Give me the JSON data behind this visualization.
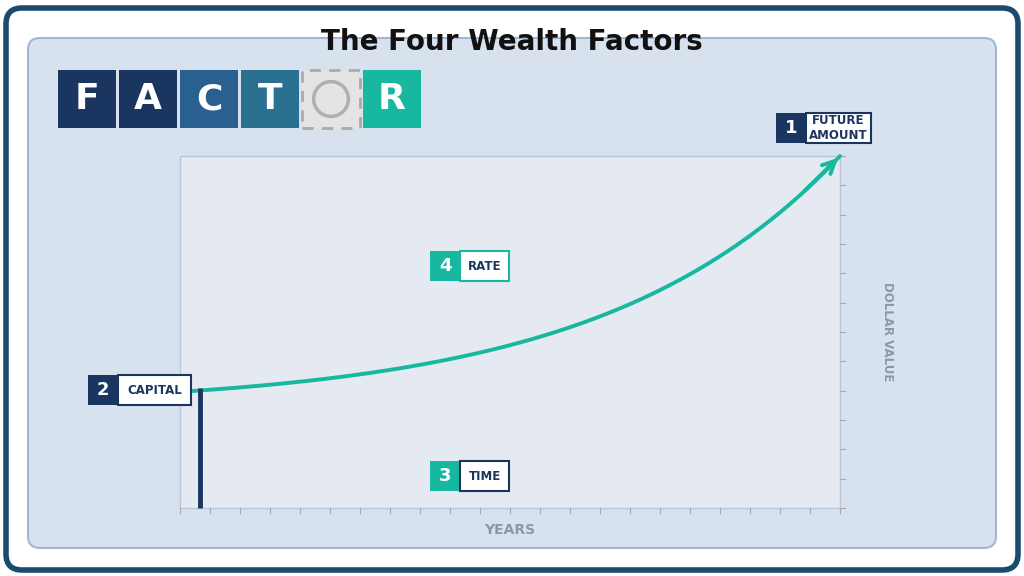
{
  "title": "The Four Wealth Factors",
  "title_fontsize": 20,
  "title_color": "#111111",
  "bg_outer": "#ffffff",
  "bg_panel": "#d8e2ee",
  "bg_chart": "#e4e9f2",
  "border_outer": "#1a4a6e",
  "border_panel": "#a0b8d0",
  "curve_color": "#18b8a0",
  "teal_color": "#18b8a0",
  "dark_blue": "#1a3560",
  "mid_blue": "#2a6090",
  "factor_letters": [
    "F",
    "A",
    "C",
    "T",
    "O",
    "R"
  ],
  "factor_bg_colors": [
    "#1a3560",
    "#1a3560",
    "#2a6090",
    "#2a7090",
    "#e0e0e0",
    "#18b8a0"
  ],
  "factor_text_colors": [
    "#ffffff",
    "#ffffff",
    "#ffffff",
    "#ffffff",
    "#b0b0b0",
    "#ffffff"
  ],
  "factor_O_dashed": true,
  "xlabel": "YEARS",
  "ylabel": "DOLLAR VALUE",
  "axis_label_color": "#8899aa",
  "badge_dark_blue": "#1a3560",
  "badge_teal": "#18b8a0",
  "badge_text_color": "#1a3560"
}
